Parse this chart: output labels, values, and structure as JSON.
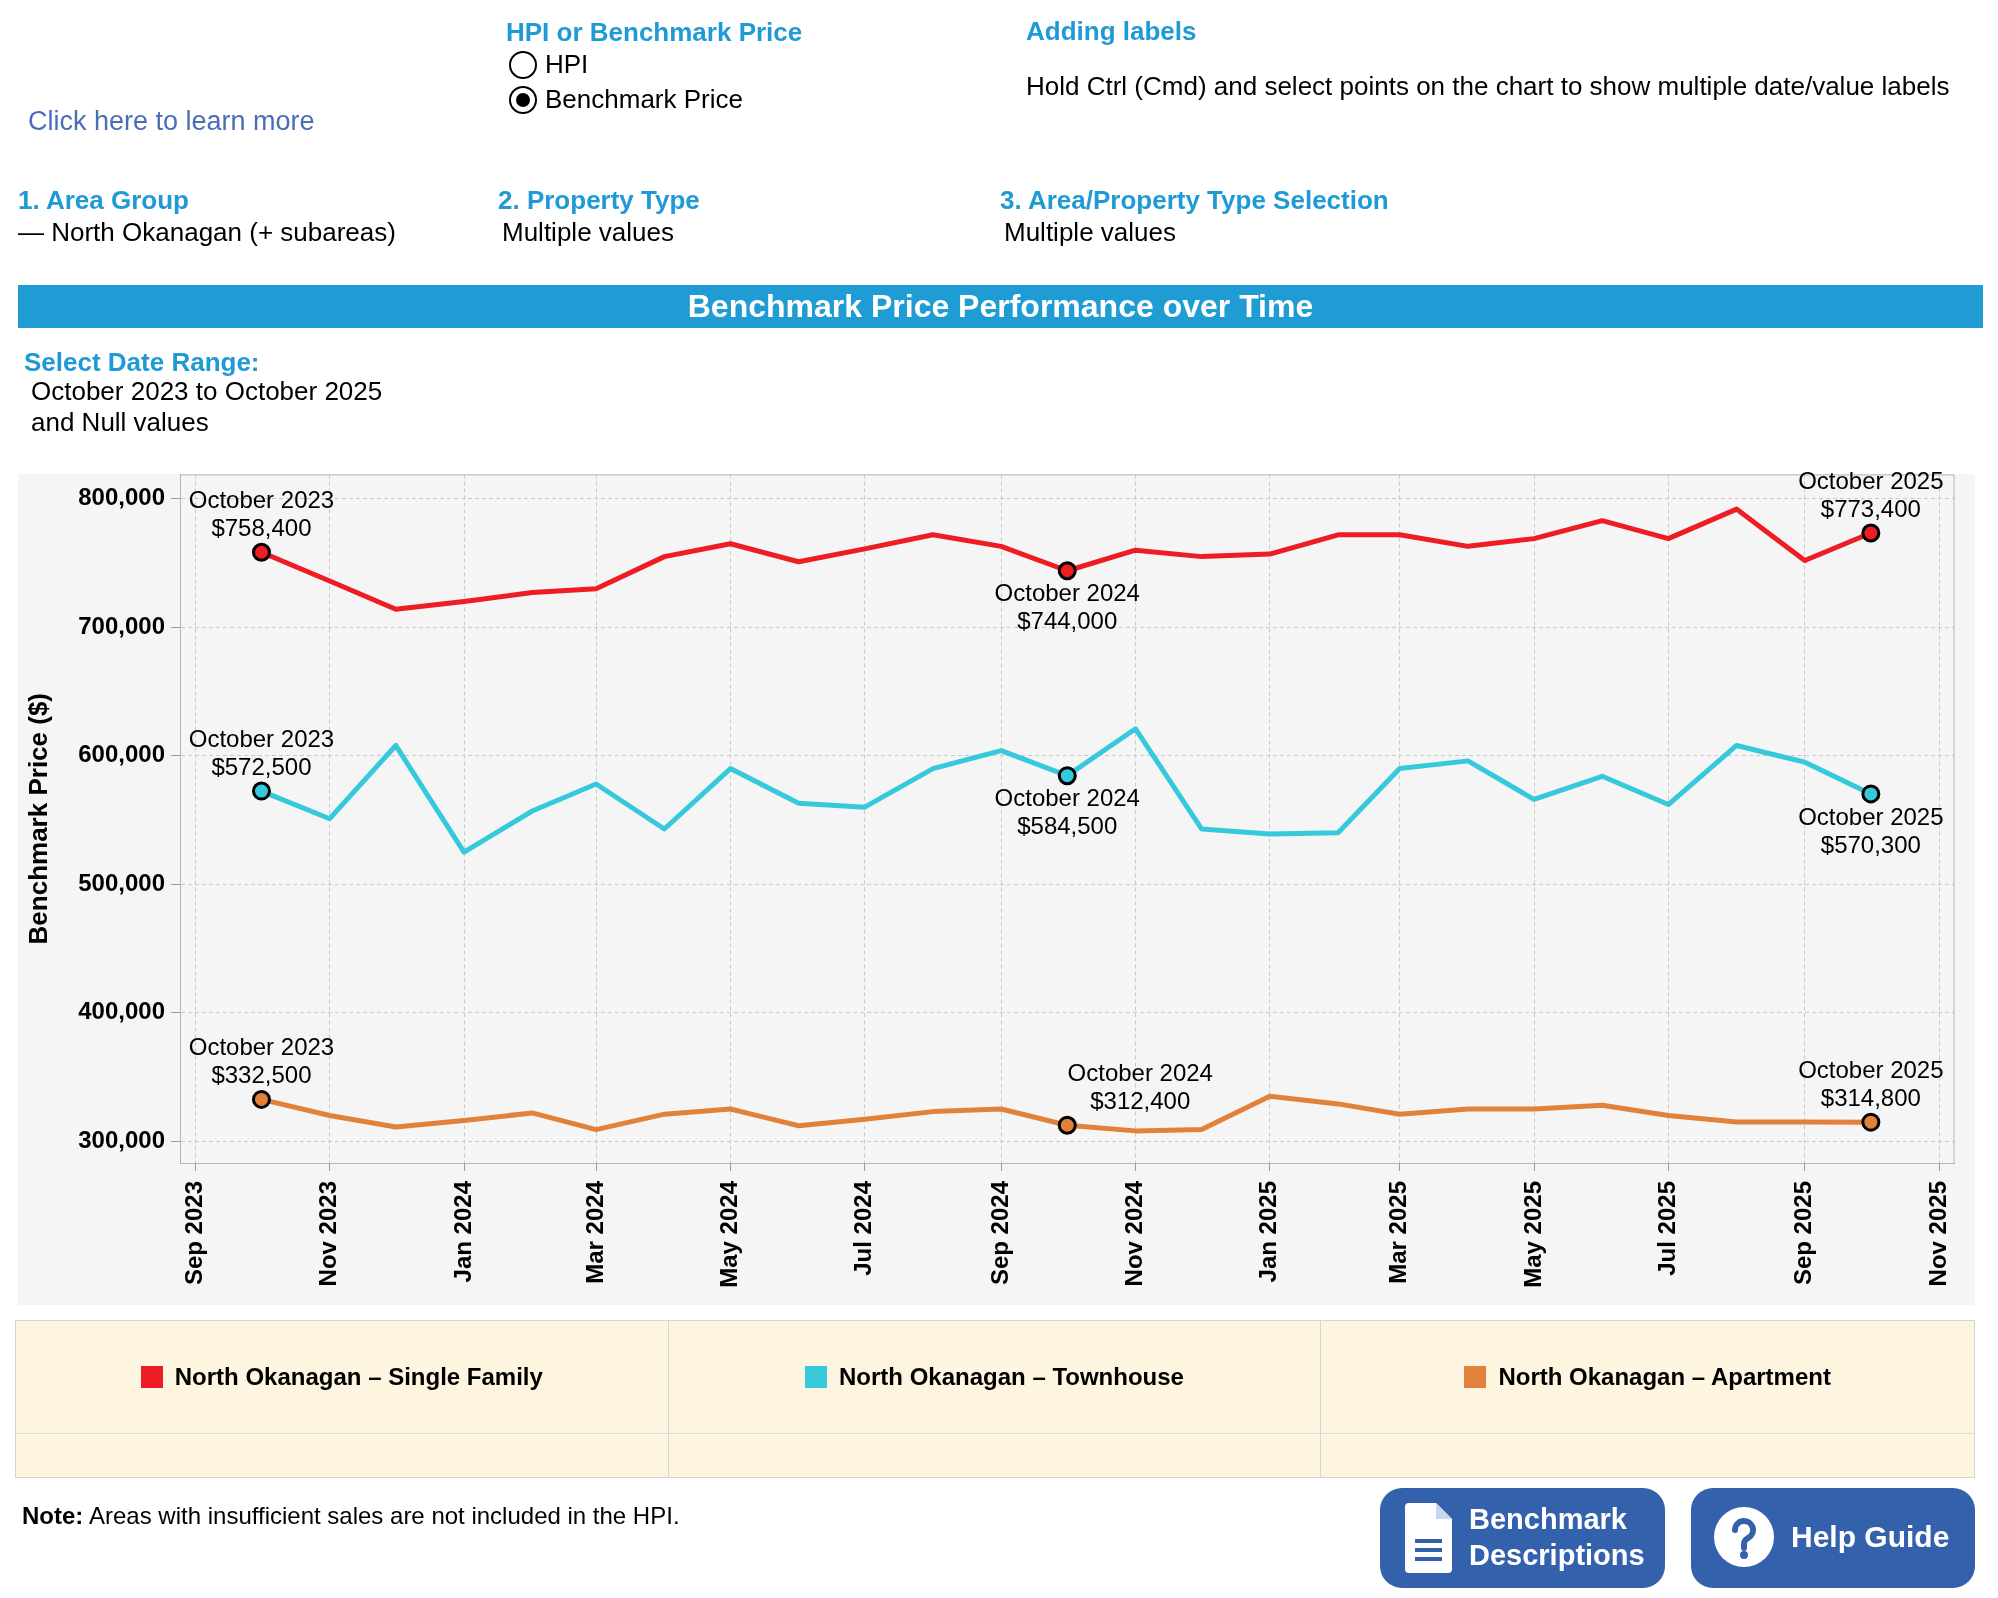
{
  "chart_data": {
    "type": "line",
    "title": "Benchmark Price Performance over Time",
    "ylabel": "Benchmark Price ($)",
    "x": [
      "2023-10",
      "2023-11",
      "2023-12",
      "2024-01",
      "2024-02",
      "2024-03",
      "2024-04",
      "2024-05",
      "2024-06",
      "2024-07",
      "2024-08",
      "2024-09",
      "2024-10",
      "2024-11",
      "2024-12",
      "2025-01",
      "2025-02",
      "2025-03",
      "2025-04",
      "2025-05",
      "2025-06",
      "2025-07",
      "2025-08",
      "2025-09",
      "2025-10"
    ],
    "xlim": [
      "2023-08-25",
      "2025-11-08"
    ],
    "xticks": [
      {
        "value": "2023-09",
        "label": "Sep 2023"
      },
      {
        "value": "2023-11",
        "label": "Nov 2023"
      },
      {
        "value": "2024-01",
        "label": "Jan 2024"
      },
      {
        "value": "2024-03",
        "label": "Mar 2024"
      },
      {
        "value": "2024-05",
        "label": "May 2024"
      },
      {
        "value": "2024-07",
        "label": "Jul 2024"
      },
      {
        "value": "2024-09",
        "label": "Sep 2024"
      },
      {
        "value": "2024-11",
        "label": "Nov 2024"
      },
      {
        "value": "2025-01",
        "label": "Jan 2025"
      },
      {
        "value": "2025-03",
        "label": "Mar 2025"
      },
      {
        "value": "2025-05",
        "label": "May 2025"
      },
      {
        "value": "2025-07",
        "label": "Jul 2025"
      },
      {
        "value": "2025-09",
        "label": "Sep 2025"
      },
      {
        "value": "2025-11",
        "label": "Nov 2025"
      }
    ],
    "ylim": [
      283000,
      819000
    ],
    "yticks": [
      {
        "value": 300000,
        "label": "300,000"
      },
      {
        "value": 400000,
        "label": "400,000"
      },
      {
        "value": 500000,
        "label": "500,000"
      },
      {
        "value": 600000,
        "label": "600,000"
      },
      {
        "value": 700000,
        "label": "700,000"
      },
      {
        "value": 800000,
        "label": "800,000"
      }
    ],
    "series": [
      {
        "name": "North Okanagan – Single Family",
        "color": "#ee1c23",
        "values": [
          758400,
          736000,
          714000,
          720000,
          727000,
          730000,
          755000,
          765000,
          751000,
          761000,
          772000,
          763000,
          744000,
          760000,
          755000,
          757000,
          772000,
          772000,
          763000,
          769000,
          783000,
          769000,
          792000,
          752000,
          773400
        ],
        "value_labels": [
          "October 2023\n$758,400",
          null,
          null,
          null,
          null,
          null,
          null,
          null,
          null,
          null,
          null,
          null,
          "October 2024\n$744,000",
          null,
          null,
          null,
          null,
          null,
          null,
          null,
          null,
          null,
          null,
          null,
          "October 2025\n$773,400"
        ]
      },
      {
        "name": "North Okanagan – Townhouse",
        "color": "#36c9dc",
        "values": [
          572500,
          551000,
          608000,
          525000,
          557000,
          578000,
          543000,
          590000,
          563000,
          560000,
          590000,
          604000,
          584500,
          621000,
          543000,
          539000,
          540000,
          590000,
          596000,
          566000,
          584000,
          562000,
          608000,
          595000,
          570300
        ],
        "value_labels": [
          "October 2023\n$572,500",
          null,
          null,
          null,
          null,
          null,
          null,
          null,
          null,
          null,
          null,
          null,
          "October 2024\n$584,500",
          null,
          null,
          null,
          null,
          null,
          null,
          null,
          null,
          null,
          null,
          null,
          "October 2025\n$570,300"
        ]
      },
      {
        "name": "North Okanagan – Apartment",
        "color": "#e2823a",
        "values": [
          332500,
          320000,
          311000,
          316000,
          322000,
          309000,
          321000,
          325000,
          312000,
          317000,
          323000,
          325000,
          312400,
          308000,
          309000,
          335000,
          329000,
          321000,
          325000,
          325000,
          328000,
          320000,
          315000,
          315000,
          314800
        ],
        "value_labels": [
          "October 2023\n$332,500",
          null,
          null,
          null,
          null,
          null,
          null,
          null,
          null,
          null,
          null,
          null,
          "October 2024\n$312,400",
          null,
          null,
          null,
          null,
          null,
          null,
          null,
          null,
          null,
          null,
          null,
          "October 2025\n$314,800"
        ]
      }
    ],
    "grid": true,
    "legend": "bottom",
    "line_style": "solid",
    "annotations": [
      "Click here to learn more",
      "HPI or Benchmark Price",
      "HPI",
      "Benchmark Price",
      "Adding labels",
      "Hold Ctrl (Cmd) and select points on the chart to show multiple date/value labels",
      "1. Area Group",
      "— North Okanagan (+ subareas)",
      "2. Property Type",
      "Multiple values",
      "3. Area/Property Type Selection",
      "Multiple values",
      "Select Date Range:",
      "October 2023 to October 2025",
      "and Null values",
      "Note:",
      "Areas with insufficient sales are not included in the HPI.",
      "Benchmark Descriptions",
      "Help Guide"
    ]
  }
}
